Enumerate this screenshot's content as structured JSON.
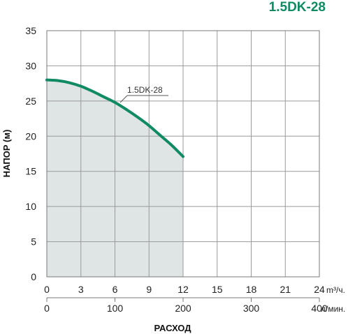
{
  "chart_data": {
    "type": "line",
    "title": "1.5DK-28",
    "ylabel": "НАПОР (м)",
    "xlabel": "РАСХОД",
    "x_unit_primary": "m³/ч.",
    "x_unit_secondary": "л/мин.",
    "ylim": [
      0,
      35
    ],
    "y_ticks": [
      "0",
      "5",
      "10",
      "15",
      "20",
      "25",
      "30",
      "35"
    ],
    "xlim_primary": [
      0,
      24
    ],
    "x_ticks_primary": [
      "0",
      "3",
      "6",
      "9",
      "12",
      "15",
      "18",
      "21",
      "24"
    ],
    "xlim_secondary": [
      0,
      400
    ],
    "x_ticks_secondary": [
      "0",
      "100",
      "200",
      "300",
      "400"
    ],
    "grid": true,
    "series": [
      {
        "name": "1.5DK-28",
        "color": "#0f8a62",
        "fill": "#dfe4e4",
        "x": [
          0,
          1,
          2,
          3,
          4,
          5,
          6,
          7,
          8,
          9,
          10,
          11,
          12
        ],
        "y": [
          28,
          27.9,
          27.6,
          27.1,
          26.4,
          25.6,
          24.8,
          23.8,
          22.7,
          21.5,
          20.1,
          18.7,
          17.1
        ]
      }
    ]
  }
}
